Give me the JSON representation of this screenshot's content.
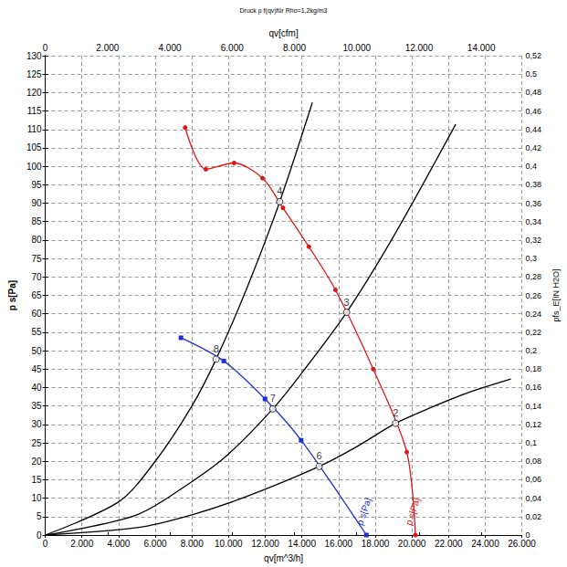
{
  "chart_data": {
    "type": "line",
    "title": "Druck p f(qv)für Rho=1,2kg/m3",
    "x_label": "qv[m^3/h]",
    "x2_label": "qv[cfm]",
    "y_label": "p s[Pa]",
    "y2_label": "pfs_E[IN H2O]",
    "grid": true,
    "xlim": [
      0,
      26000
    ],
    "xticks": [
      0,
      {
        "value": 2000,
        "label": "2.000"
      },
      {
        "value": 4000,
        "label": "4.000"
      },
      {
        "value": 6000,
        "label": "6.000"
      },
      {
        "value": 8000,
        "label": "8.000"
      },
      {
        "value": 10000,
        "label": "10.000"
      },
      {
        "value": 12000,
        "label": "12.000"
      },
      {
        "value": 14000,
        "label": "14.000"
      },
      {
        "value": 16000,
        "label": "16.000"
      },
      {
        "value": 18000,
        "label": "18.000"
      },
      {
        "value": 20000,
        "label": "20.000"
      },
      {
        "value": 22000,
        "label": "22.000"
      },
      {
        "value": 24000,
        "label": "24.000"
      },
      {
        "value": 26000,
        "label": "26.000"
      }
    ],
    "x2lim": [
      0,
      15302
    ],
    "x2ticks": [
      0,
      {
        "value": 2000,
        "label": "2.000"
      },
      {
        "value": 4000,
        "label": "4.000"
      },
      {
        "value": 6000,
        "label": "6.000"
      },
      {
        "value": 8000,
        "label": "8.000"
      },
      {
        "value": 10000,
        "label": "10.000"
      },
      {
        "value": 12000,
        "label": "12.000"
      },
      {
        "value": 14000,
        "label": "14.000"
      }
    ],
    "ylim": [
      0,
      130
    ],
    "yticks": [
      0,
      5,
      10,
      15,
      20,
      25,
      30,
      35,
      40,
      45,
      50,
      55,
      60,
      65,
      70,
      75,
      80,
      85,
      90,
      95,
      100,
      105,
      110,
      115,
      120,
      125,
      130
    ],
    "y2lim": [
      0,
      0.52
    ],
    "y2ticks": [
      0,
      {
        "value": 0.02,
        "label": "0,02"
      },
      {
        "value": 0.04,
        "label": "0,04"
      },
      {
        "value": 0.06,
        "label": "0,06"
      },
      {
        "value": 0.08,
        "label": "0,08"
      },
      {
        "value": 0.1,
        "label": "0,1"
      },
      {
        "value": 0.12,
        "label": "0,12"
      },
      {
        "value": 0.14,
        "label": "0,14"
      },
      {
        "value": 0.16,
        "label": "0,16"
      },
      {
        "value": 0.18,
        "label": "0,18"
      },
      {
        "value": 0.2,
        "label": "0,2"
      },
      {
        "value": 0.22,
        "label": "0,22"
      },
      {
        "value": 0.24,
        "label": "0,24"
      },
      {
        "value": 0.26,
        "label": "0,26"
      },
      {
        "value": 0.28,
        "label": "0,28"
      },
      {
        "value": 0.3,
        "label": "0,3"
      },
      {
        "value": 0.32,
        "label": "0,32"
      },
      {
        "value": 0.34,
        "label": "0,34"
      },
      {
        "value": 0.36,
        "label": "0,36"
      },
      {
        "value": 0.38,
        "label": "0,38"
      },
      {
        "value": 0.4,
        "label": "0,4"
      },
      {
        "value": 0.42,
        "label": "0,42"
      },
      {
        "value": 0.44,
        "label": "0,44"
      },
      {
        "value": 0.46,
        "label": "0,46"
      },
      {
        "value": 0.48,
        "label": "0,48"
      },
      {
        "value": 0.5,
        "label": "0,5"
      },
      {
        "value": 0.52,
        "label": "0,52"
      }
    ],
    "series": [
      {
        "name": "p s[Pa]",
        "color": "#e01414",
        "marker": "circle",
        "line_style": "solid",
        "x": [
          7630,
          8760,
          10300,
          11850,
          12970,
          14380,
          15830,
          17890,
          19720,
          20190
        ],
        "values": [
          110.5,
          99.2,
          100.9,
          96.8,
          88.7,
          78.2,
          66.5,
          45,
          22.5,
          0
        ]
      },
      {
        "name": "p s[Pa]",
        "color": "#1f2fd0",
        "marker": "square",
        "line_style": "solid",
        "x": [
          7400,
          9740,
          11990,
          13960,
          17520
        ],
        "values": [
          53.5,
          47.2,
          36.9,
          25.7,
          0
        ]
      },
      {
        "color": "#000000",
        "marker": "none",
        "line_style": "solid",
        "x": [
          0,
          4000,
          6000,
          8000,
          9320,
          11000,
          12790,
          14570
        ],
        "values": [
          0,
          9,
          20,
          35,
          47.7,
          67,
          90.4,
          117.3
        ]
      },
      {
        "color": "#000000",
        "marker": "none",
        "line_style": "solid",
        "x": [
          0,
          5000,
          8000,
          10000,
          12410,
          14000,
          16440,
          19000,
          22390
        ],
        "values": [
          0,
          5.5,
          14.5,
          22,
          34.2,
          44,
          60.4,
          81,
          111.4
        ]
      },
      {
        "color": "#000000",
        "marker": "none",
        "line_style": "solid",
        "x": [
          0,
          5000,
          8000,
          11000,
          14940,
          17000,
          19110,
          21000,
          23000,
          25400
        ],
        "values": [
          0,
          2,
          5.5,
          10.5,
          18.6,
          24,
          30.3,
          34.5,
          38.5,
          42.3
        ]
      }
    ],
    "annotations": [
      {
        "label": "2",
        "x": 19110,
        "y": 30.3
      },
      {
        "label": "3",
        "x": 16440,
        "y": 60.4
      },
      {
        "label": "4",
        "x": 12790,
        "y": 90.4
      },
      {
        "label": "6",
        "x": 14940,
        "y": 18.6
      },
      {
        "label": "7",
        "x": 12410,
        "y": 34.2
      },
      {
        "label": "8",
        "x": 9320,
        "y": 47.7
      }
    ]
  }
}
